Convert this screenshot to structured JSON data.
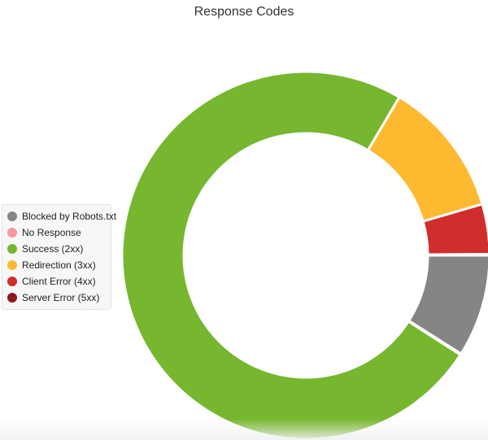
{
  "chart_data": {
    "type": "pie",
    "title": "Response Codes",
    "donut": true,
    "legend_position": "left",
    "categories": [
      "Blocked by Robots.txt",
      "No Response",
      "Success (2xx)",
      "Redirection (3xx)",
      "Client Error (4xx)",
      "Server Error (5xx)"
    ],
    "values": [
      9.0,
      0.1,
      74.4,
      12.0,
      4.4,
      0.1
    ],
    "colors": [
      "#858585",
      "#f7969b",
      "#76b72f",
      "#fdba30",
      "#d02d2d",
      "#8b1a1a"
    ]
  }
}
